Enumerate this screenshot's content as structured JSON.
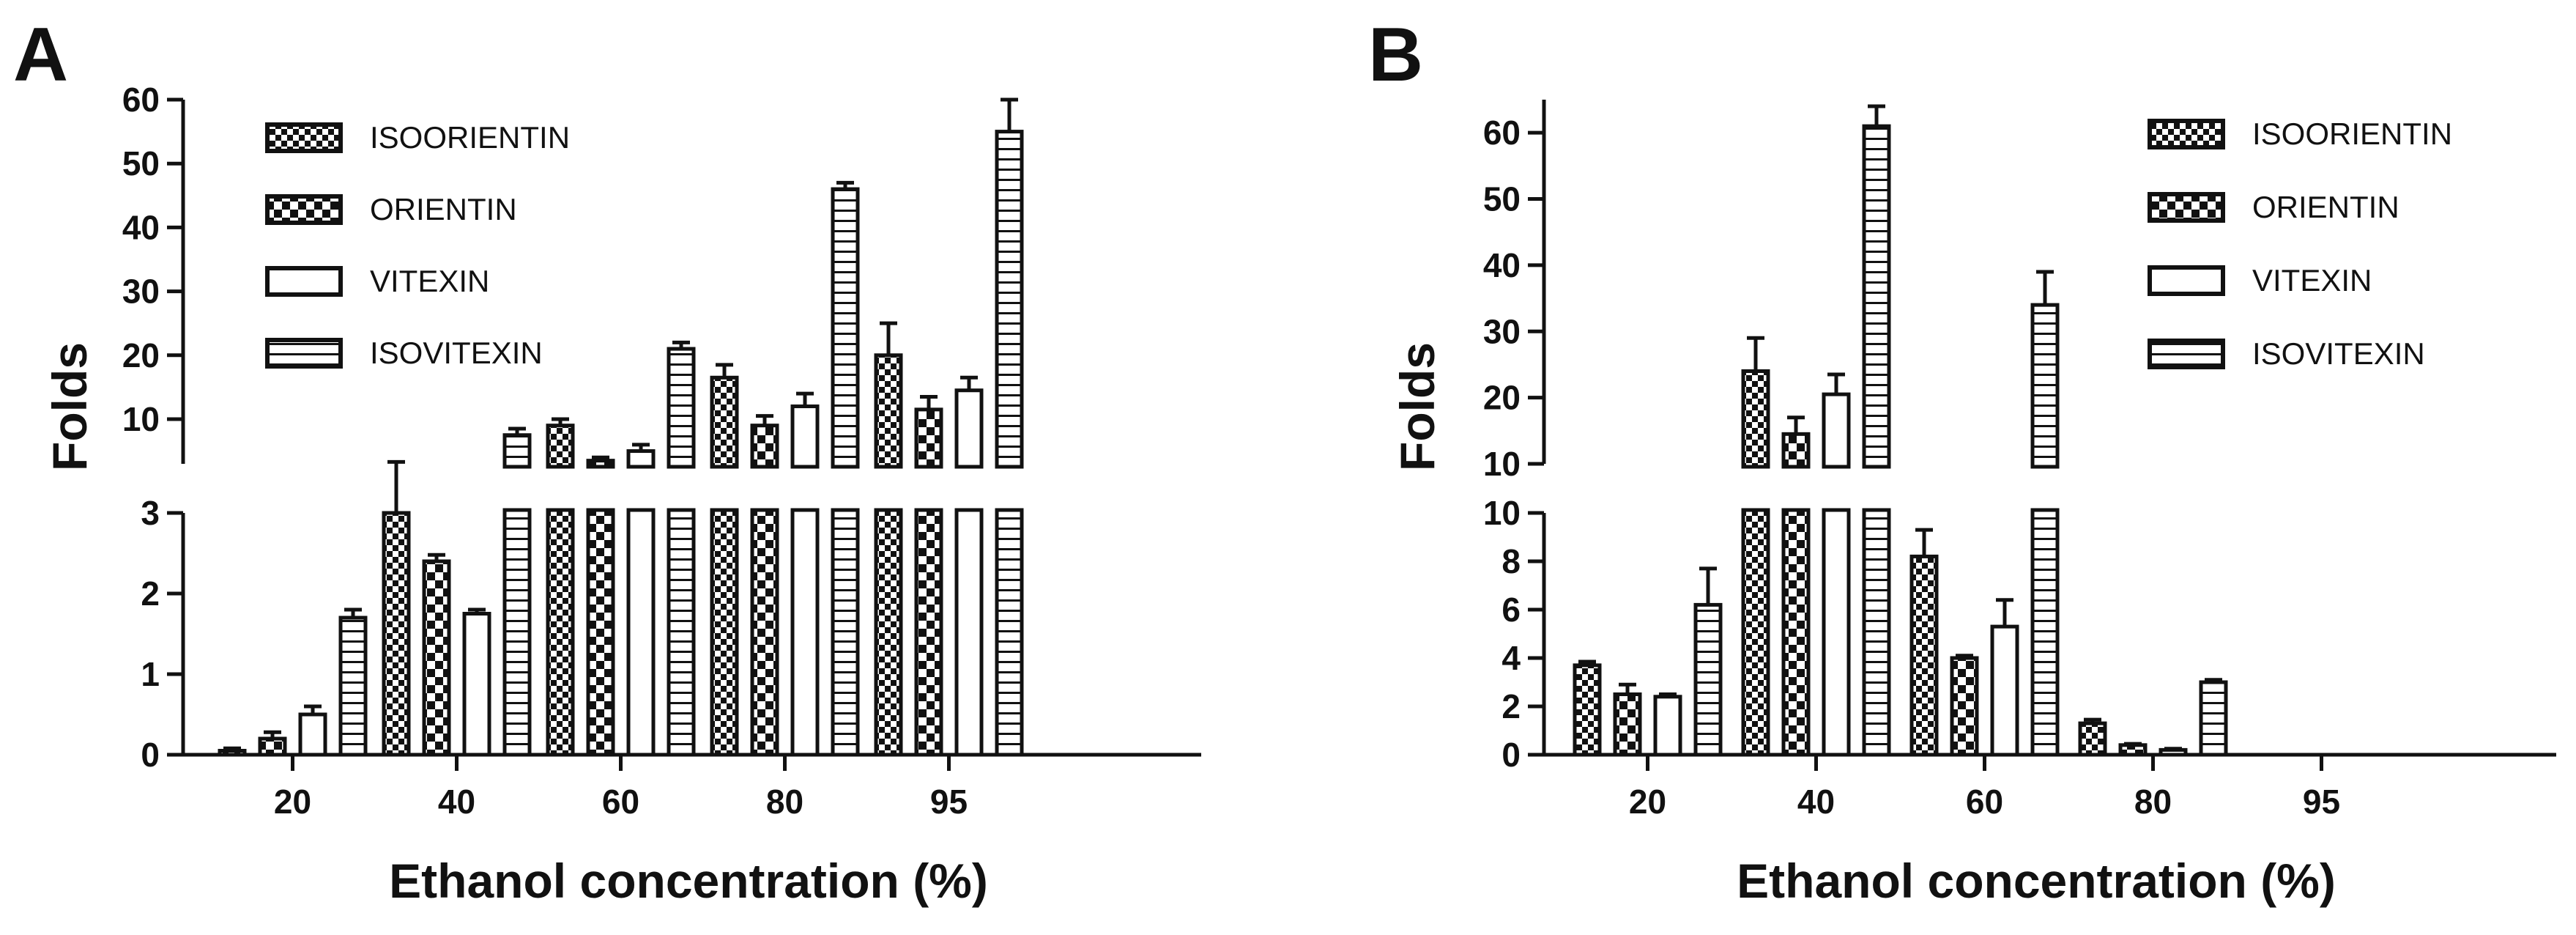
{
  "chart_data": [
    {
      "panel": "A",
      "type": "bar",
      "title": "",
      "xlabel": "Ethanol concentration (%)",
      "ylabel": "Folds",
      "categories": [
        "20",
        "40",
        "60",
        "80",
        "95"
      ],
      "series": [
        {
          "name": "ISOORIENTIN",
          "pattern": "checker",
          "values": [
            0.05,
            3.0,
            9.0,
            16.5,
            20.0
          ],
          "errors": [
            0.03,
            0.3,
            1.0,
            2.0,
            5.0
          ]
        },
        {
          "name": "ORIENTIN",
          "pattern": "dashed",
          "values": [
            0.2,
            2.4,
            3.5,
            9.0,
            11.5
          ],
          "errors": [
            0.08,
            0.08,
            0.5,
            1.5,
            2.0
          ]
        },
        {
          "name": "VITEXIN",
          "pattern": "open",
          "values": [
            0.5,
            1.75,
            5.0,
            12.0,
            14.5
          ],
          "errors": [
            0.1,
            0.05,
            1.0,
            2.0,
            2.0
          ]
        },
        {
          "name": "ISOVITEXIN",
          "pattern": "horizontal-lines",
          "values": [
            1.7,
            7.5,
            21.0,
            46.0,
            55.0
          ],
          "errors": [
            0.1,
            1.0,
            1.0,
            1.0,
            5.0
          ]
        }
      ],
      "axis_break": {
        "lower_range": [
          0,
          3
        ],
        "upper_range": [
          3,
          60
        ]
      },
      "lower_ticks": [
        0,
        1,
        2,
        3
      ],
      "upper_ticks": [
        10,
        20,
        30,
        40,
        50,
        60
      ],
      "legend_position": "top-left"
    },
    {
      "panel": "B",
      "type": "bar",
      "title": "",
      "xlabel": "Ethanol concentration (%)",
      "ylabel": "Folds",
      "categories": [
        "20",
        "40",
        "60",
        "80",
        "95"
      ],
      "series": [
        {
          "name": "ISOORIENTIN",
          "pattern": "checker",
          "values": [
            3.7,
            24.0,
            8.2,
            1.3,
            0
          ],
          "errors": [
            0.15,
            5.0,
            1.1,
            0.15,
            0
          ]
        },
        {
          "name": "ORIENTIN",
          "pattern": "dashed",
          "values": [
            2.5,
            14.5,
            4.0,
            0.4,
            0
          ],
          "errors": [
            0.4,
            2.5,
            0.1,
            0.05,
            0
          ]
        },
        {
          "name": "VITEXIN",
          "pattern": "open",
          "values": [
            2.4,
            20.5,
            5.3,
            0.2,
            0
          ],
          "errors": [
            0.1,
            3.0,
            1.1,
            0.05,
            0
          ]
        },
        {
          "name": "ISOVITEXIN",
          "pattern": "horizontal-lines",
          "values": [
            6.2,
            61.0,
            34.0,
            3.0,
            0
          ],
          "errors": [
            1.5,
            3.0,
            5.0,
            0.1,
            0
          ]
        }
      ],
      "axis_break": {
        "lower_range": [
          0,
          10
        ],
        "upper_range": [
          10,
          65
        ]
      },
      "lower_ticks": [
        0,
        2,
        4,
        6,
        8,
        10
      ],
      "upper_ticks": [
        10,
        20,
        30,
        40,
        50,
        60
      ],
      "legend_position": "top-right"
    }
  ]
}
